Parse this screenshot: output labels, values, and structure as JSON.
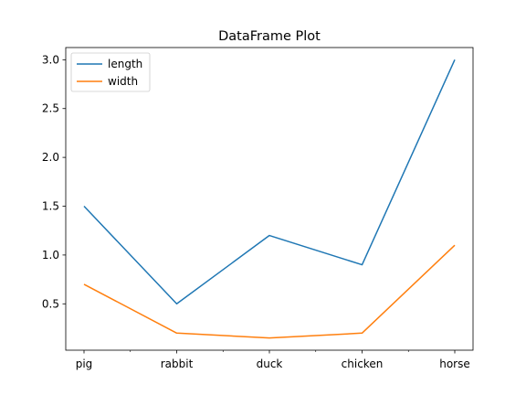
{
  "chart_data": {
    "type": "line",
    "title": "DataFrame Plot",
    "xlabel": "",
    "ylabel": "",
    "categories": [
      "pig",
      "rabbit",
      "duck",
      "chicken",
      "horse"
    ],
    "series": [
      {
        "name": "length",
        "color": "#1f77b4",
        "values": [
          1.5,
          0.5,
          1.2,
          0.9,
          3.0
        ]
      },
      {
        "name": "width",
        "color": "#ff7f0e",
        "values": [
          0.7,
          0.2,
          0.15,
          0.2,
          1.1
        ]
      }
    ],
    "ylim": [
      0.025,
      3.125
    ],
    "yticks": [
      0.5,
      1.0,
      1.5,
      2.0,
      2.5,
      3.0
    ],
    "ytick_labels": [
      "0.5",
      "1.0",
      "1.5",
      "2.0",
      "2.5",
      "3.0"
    ],
    "grid": false,
    "legend_position": "top-left"
  }
}
